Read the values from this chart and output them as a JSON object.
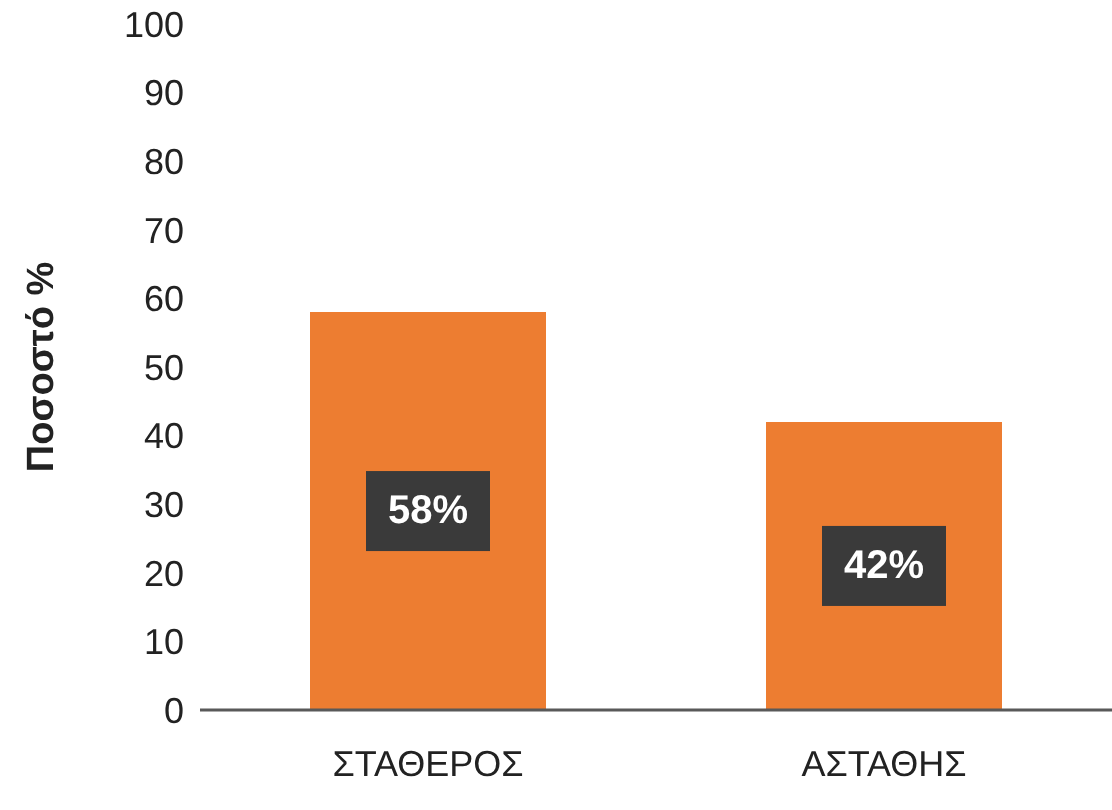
{
  "chart_data": {
    "type": "bar",
    "ylabel": "Ποσοστό %",
    "categories": [
      "ΣΤΑΘΕΡΟΣ",
      "ΑΣΤΑΘΗΣ"
    ],
    "values": [
      58,
      42
    ],
    "value_labels": [
      "58%",
      "42%"
    ],
    "color": "#ed7d31",
    "ylim": [
      0,
      100
    ],
    "yticks": [
      0,
      10,
      20,
      30,
      40,
      50,
      60,
      70,
      80,
      90,
      100
    ],
    "grid": false,
    "legend": false
  }
}
